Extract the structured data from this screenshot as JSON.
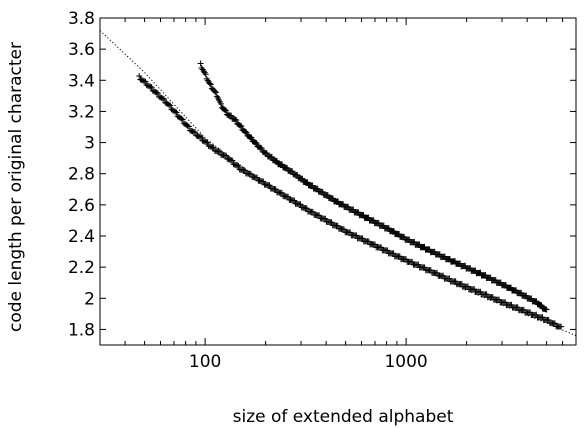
{
  "chart_data": {
    "type": "scatter",
    "title": "",
    "xlabel": "size of extended alphabet",
    "ylabel": "code length per original character",
    "x_scale": "log",
    "xlim": [
      30,
      7000
    ],
    "ylim": [
      1.7,
      3.8
    ],
    "x_ticks": [
      {
        "value": 100,
        "label": "100"
      },
      {
        "value": 1000,
        "label": "1000"
      }
    ],
    "y_ticks": [
      {
        "value": 1.8,
        "label": "1.8"
      },
      {
        "value": 2.0,
        "label": "2"
      },
      {
        "value": 2.2,
        "label": "2.2"
      },
      {
        "value": 2.4,
        "label": "2.4"
      },
      {
        "value": 2.6,
        "label": "2.6"
      },
      {
        "value": 2.8,
        "label": "2.8"
      },
      {
        "value": 3.0,
        "label": "3"
      },
      {
        "value": 3.2,
        "label": "3.2"
      },
      {
        "value": 3.4,
        "label": "3.4"
      },
      {
        "value": 3.6,
        "label": "3.6"
      },
      {
        "value": 3.8,
        "label": "3.8"
      }
    ],
    "grid": false,
    "legend": "none",
    "series": [
      {
        "kind": "points",
        "marker": "plus",
        "color": "#000000",
        "x": [
          47,
          55,
          65,
          75,
          85,
          95,
          110,
          130,
          150,
          180,
          220,
          270,
          330,
          400,
          500,
          600,
          750,
          900,
          1100,
          1400,
          1700,
          2100,
          2600,
          3200,
          4000,
          5000,
          5900
        ],
        "y": [
          3.42,
          3.34,
          3.25,
          3.16,
          3.08,
          3.03,
          2.96,
          2.9,
          2.83,
          2.77,
          2.7,
          2.63,
          2.56,
          2.5,
          2.43,
          2.38,
          2.32,
          2.27,
          2.22,
          2.16,
          2.11,
          2.06,
          2.01,
          1.96,
          1.91,
          1.86,
          1.81
        ]
      },
      {
        "kind": "points",
        "marker": "plus",
        "color": "#000000",
        "x": [
          95,
          100,
          105,
          110,
          115,
          120,
          130,
          140,
          160,
          180,
          200,
          230,
          270,
          320,
          380,
          450,
          550,
          650,
          800,
          1000,
          1200,
          1500,
          1900,
          2400,
          3000,
          3700,
          4500,
          5000
        ],
        "y": [
          3.5,
          3.44,
          3.38,
          3.34,
          3.3,
          3.24,
          3.18,
          3.15,
          3.06,
          2.99,
          2.93,
          2.87,
          2.81,
          2.74,
          2.68,
          2.62,
          2.56,
          2.51,
          2.45,
          2.38,
          2.33,
          2.27,
          2.21,
          2.15,
          2.09,
          2.03,
          1.97,
          1.92
        ]
      },
      {
        "kind": "dotted-line",
        "color": "#000000",
        "x": [
          30,
          50,
          100,
          200,
          500,
          1000,
          2000,
          5000,
          7000
        ],
        "y": [
          3.72,
          3.45,
          3.03,
          2.73,
          2.44,
          2.25,
          2.05,
          1.84,
          1.76
        ]
      }
    ]
  }
}
